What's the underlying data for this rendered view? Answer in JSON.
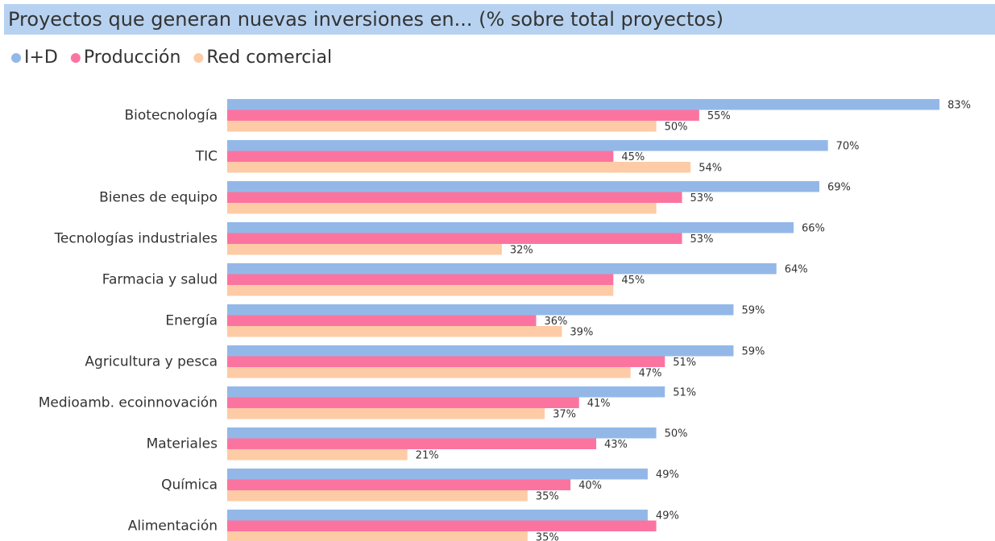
{
  "chart_data": {
    "type": "hbar",
    "title": "Proyectos que generan nuevas inversiones en... (% sobre total proyectos)",
    "categories": [
      "Biotecnología",
      "TIC",
      "Bienes de equipo",
      "Tecnologías industriales",
      "Farmacia y salud",
      "Energía",
      "Agricultura y pesca",
      "Medioamb. ecoinnovación",
      "Materiales",
      "Química",
      "Alimentación"
    ],
    "series": [
      {
        "name": "I+D",
        "color": "#93b8e8",
        "values": [
          83,
          70,
          69,
          66,
          64,
          59,
          59,
          51,
          50,
          49,
          49
        ],
        "value_labels": [
          "83%",
          "70%",
          "69%",
          "66%",
          "64%",
          "59%",
          "59%",
          "51%",
          "50%",
          "49%",
          "49%"
        ]
      },
      {
        "name": "Producción",
        "color": "#fb74a0",
        "values": [
          55,
          45,
          53,
          53,
          45,
          36,
          51,
          41,
          43,
          40,
          50
        ],
        "value_labels": [
          "55%",
          "45%",
          "53%",
          "53%",
          "45%",
          "36%",
          "51%",
          "41%",
          "43%",
          "40%",
          null
        ]
      },
      {
        "name": "Red comercial",
        "color": "#fdcba6",
        "values": [
          50,
          54,
          50,
          32,
          45,
          39,
          47,
          37,
          21,
          35,
          35
        ],
        "value_labels": [
          "50%",
          "54%",
          null,
          "32%",
          null,
          "39%",
          "47%",
          "37%",
          "21%",
          "35%",
          "35%"
        ]
      }
    ],
    "xlim": [
      0,
      89
    ]
  }
}
